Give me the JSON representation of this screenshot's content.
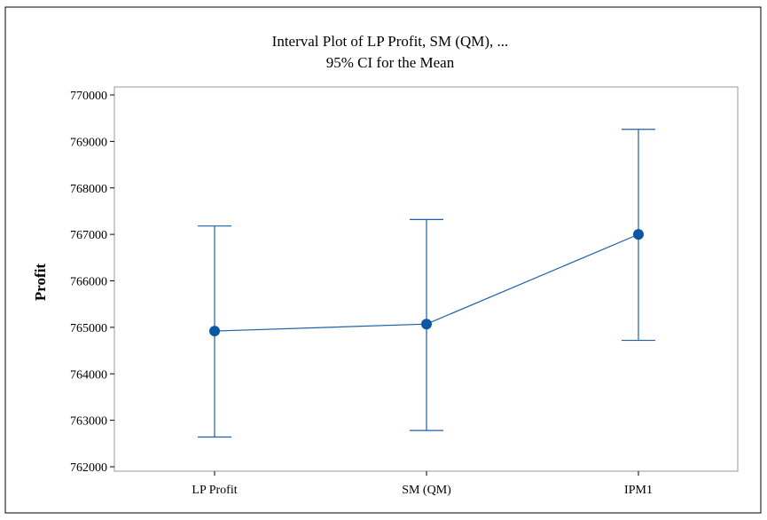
{
  "chart_data": {
    "type": "interval",
    "title": "Interval Plot of LP Profit, SM (QM), ...",
    "subtitle": "95% CI for the Mean",
    "xlabel": "",
    "ylabel": "Profit",
    "categories": [
      "LP Profit",
      "SM (QM)",
      "IPM1"
    ],
    "means": [
      764920,
      765070,
      767000
    ],
    "lower": [
      762640,
      762780,
      764720
    ],
    "upper": [
      767180,
      767320,
      769260
    ],
    "ylim": [
      762000,
      770000
    ],
    "yticks": [
      762000,
      763000,
      764000,
      765000,
      766000,
      767000,
      768000,
      769000,
      770000
    ],
    "ytick_labels": [
      "762000",
      "763000",
      "764000",
      "765000",
      "766000",
      "767000",
      "768000",
      "769000",
      "770000"
    ],
    "grid": false,
    "legend": "none",
    "color": "#1f5fa8",
    "marker_color": "#0b57a6"
  }
}
